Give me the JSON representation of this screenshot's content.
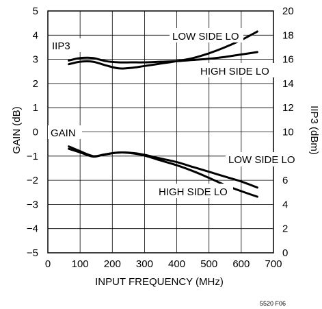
{
  "chart_data": {
    "type": "line",
    "figure_id": "5520 F06",
    "xlabel": "INPUT FREQUENCY (MHz)",
    "ylabel": "GAIN (dB)",
    "y2label": "IIP3 (dBm)",
    "xlim": [
      0,
      700
    ],
    "ylim": [
      -5,
      5
    ],
    "y2lim": [
      0,
      20
    ],
    "xticks": [
      0,
      100,
      200,
      300,
      400,
      500,
      600,
      700
    ],
    "yticks": [
      -5,
      -4,
      -3,
      -2,
      -1,
      0,
      1,
      2,
      3,
      4,
      5
    ],
    "y2ticks": [
      0,
      2,
      4,
      6,
      8,
      10,
      12,
      14,
      16,
      18,
      20
    ],
    "grid": true,
    "annotations": {
      "iip3": "IIP3",
      "gain": "GAIN",
      "iip3_low": "LOW SIDE LO",
      "iip3_high": "HIGH SIDE LO",
      "gain_low": "LOW SIDE LO",
      "gain_high": "HIGH SIDE LO"
    },
    "series": [
      {
        "axis": "right",
        "x": [
          65,
          100,
          140,
          180,
          220,
          260,
          300,
          350,
          400,
          450,
          500,
          550,
          600,
          650
        ],
        "values": [
          15.9,
          16.1,
          16.1,
          15.85,
          15.75,
          15.75,
          15.75,
          15.8,
          15.85,
          15.95,
          16.05,
          16.2,
          16.4,
          16.6
        ]
      },
      {
        "axis": "right",
        "x": [
          65,
          100,
          140,
          180,
          220,
          260,
          300,
          350,
          400,
          450,
          500,
          550,
          600,
          650
        ],
        "values": [
          15.6,
          15.8,
          15.8,
          15.5,
          15.25,
          15.3,
          15.45,
          15.65,
          15.85,
          16.1,
          16.5,
          17.0,
          17.6,
          18.3
        ]
      },
      {
        "axis": "left",
        "x": [
          65,
          100,
          140,
          170,
          200,
          230,
          270,
          300,
          350,
          400,
          450,
          500,
          550,
          600,
          650
        ],
        "values": [
          -0.6,
          -0.8,
          -1.0,
          -0.95,
          -0.88,
          -0.85,
          -0.88,
          -0.95,
          -1.1,
          -1.25,
          -1.45,
          -1.65,
          -1.85,
          -2.05,
          -2.3
        ]
      },
      {
        "axis": "left",
        "x": [
          65,
          100,
          140,
          170,
          200,
          230,
          270,
          300,
          350,
          400,
          450,
          500,
          550,
          600,
          650
        ],
        "values": [
          -0.7,
          -0.85,
          -1.02,
          -0.95,
          -0.88,
          -0.85,
          -0.9,
          -0.98,
          -1.18,
          -1.38,
          -1.62,
          -1.9,
          -2.2,
          -2.45,
          -2.68
        ]
      }
    ]
  }
}
